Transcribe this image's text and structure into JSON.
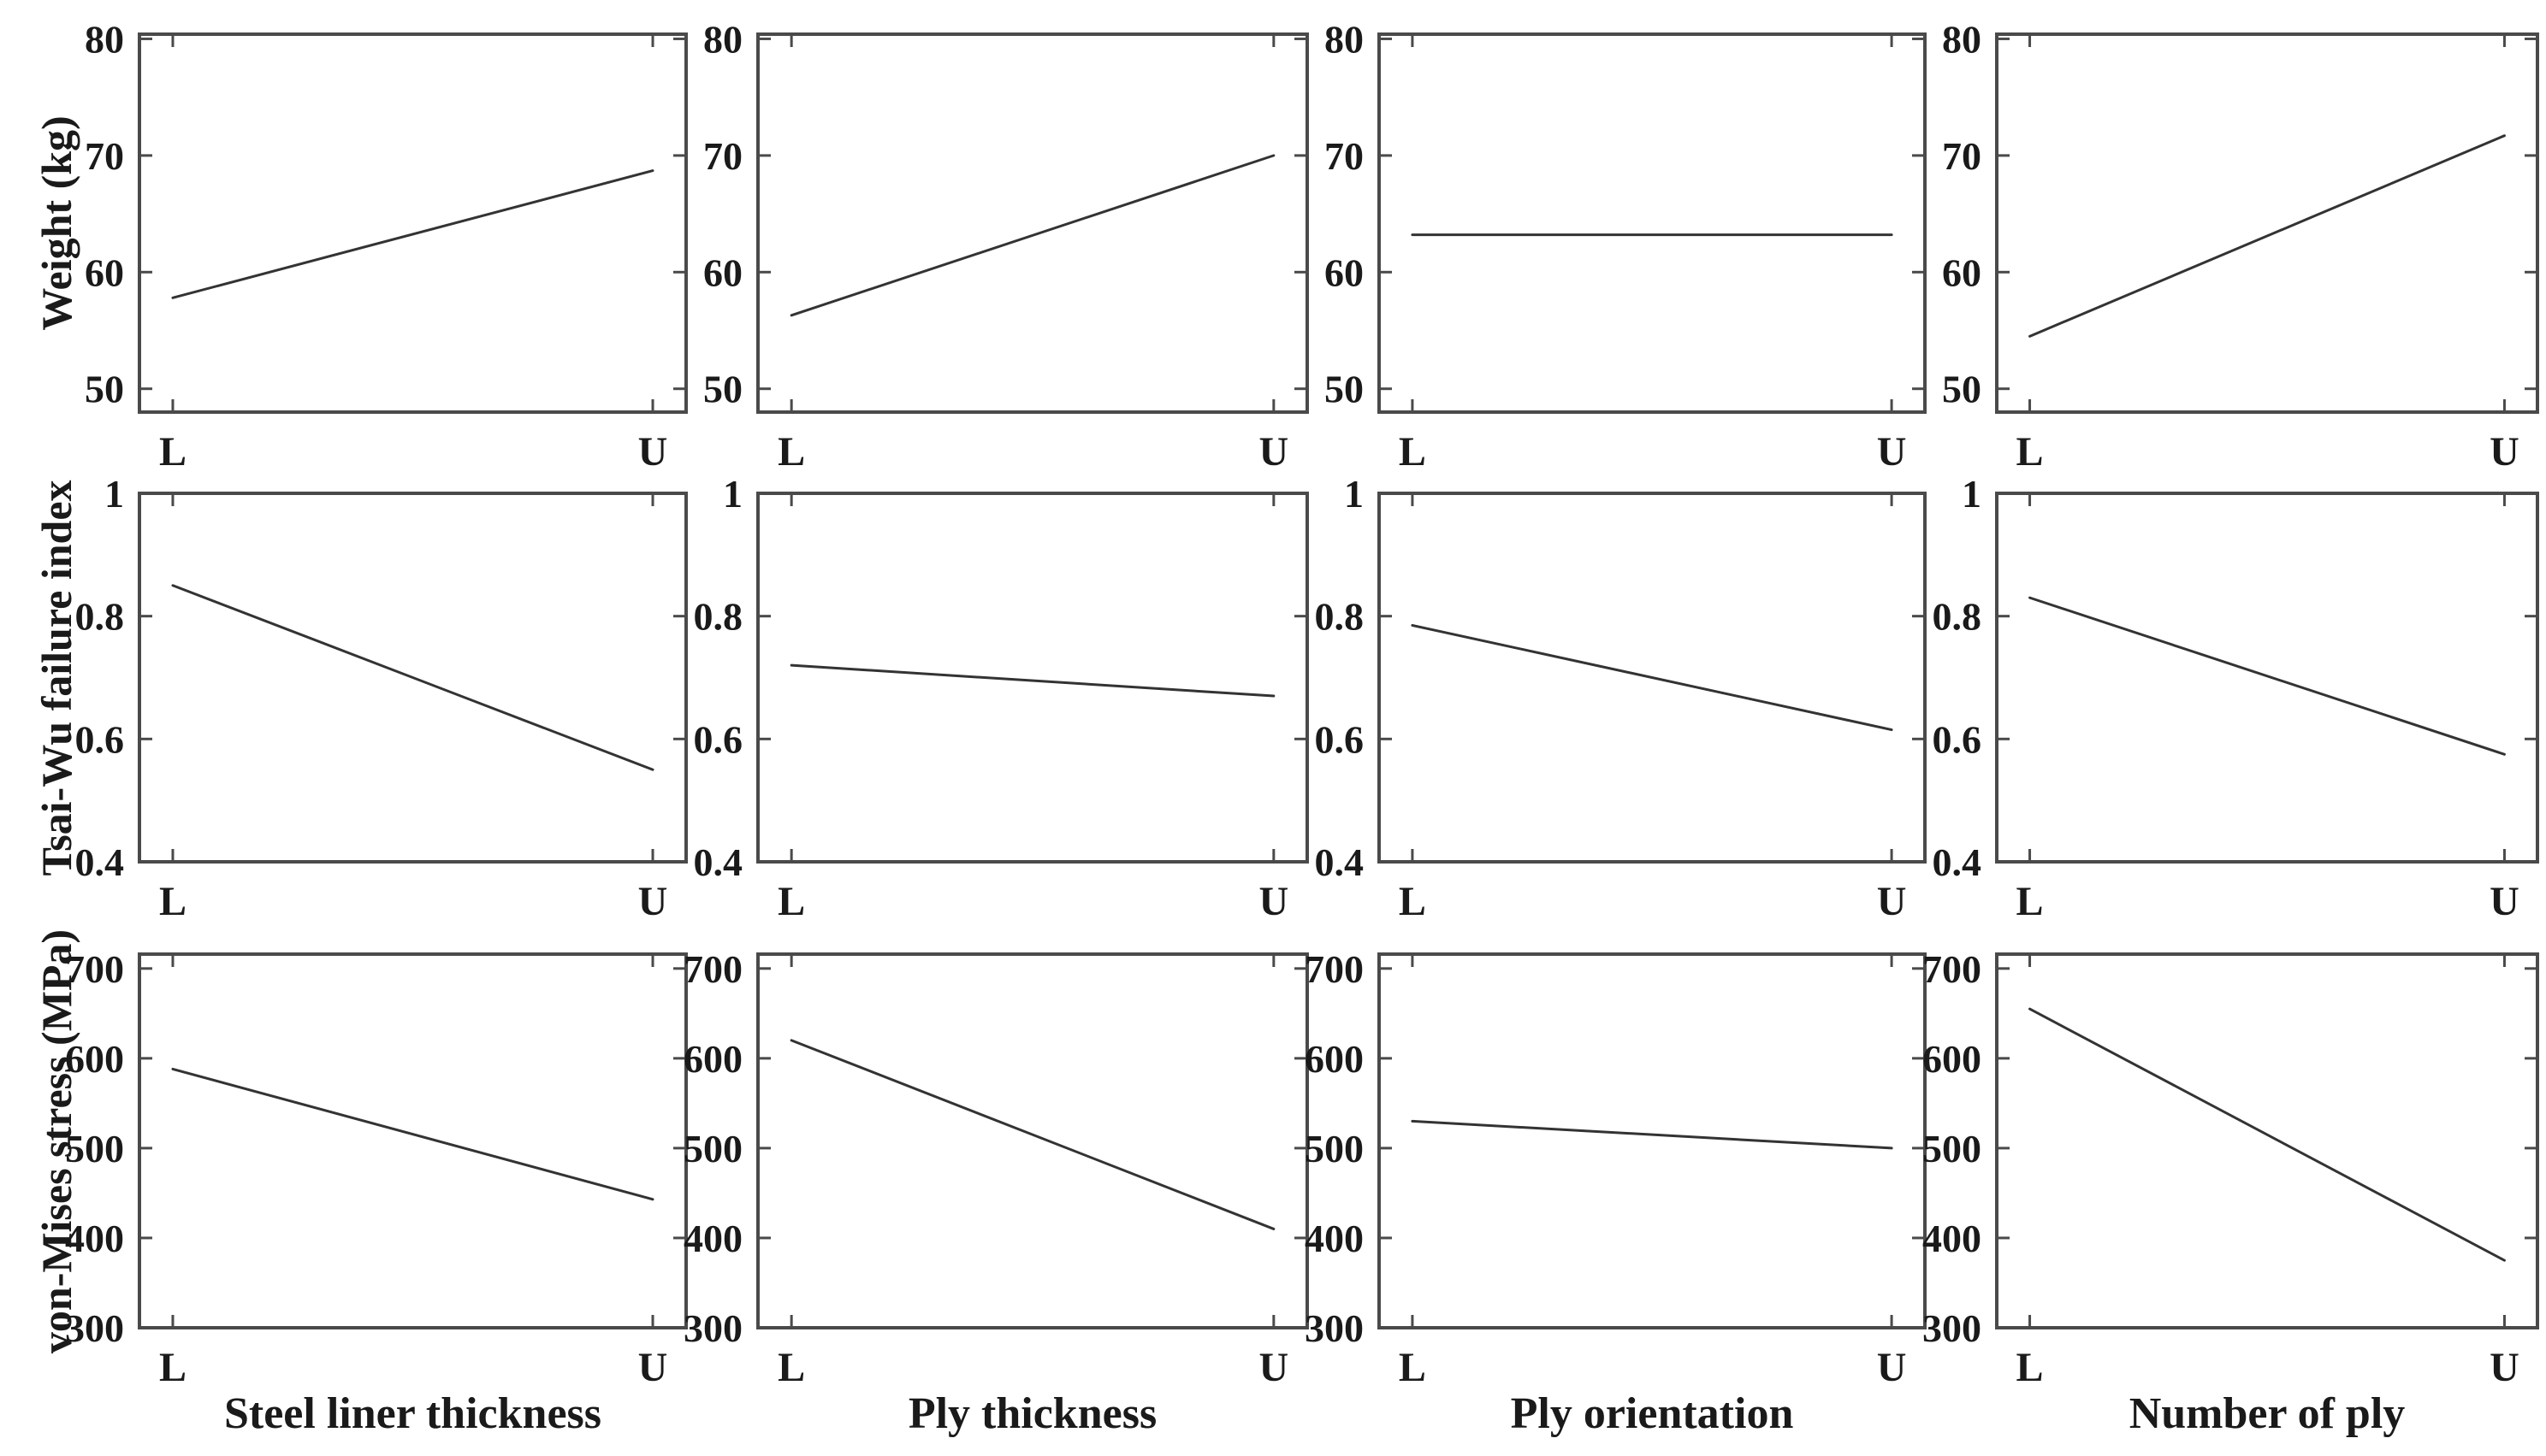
{
  "figure": {
    "background": "#ffffff",
    "text_color": "#1a1a1a",
    "axis_color": "#4a4a4a",
    "line_color": "#333333"
  },
  "chart_data": {
    "type": "line",
    "grid": false,
    "legend": null,
    "x_categories": [
      "L",
      "U"
    ],
    "columns": [
      "Steel liner thickness",
      "Ply thickness",
      "Ply orientation",
      "Number of ply"
    ],
    "rows": [
      {
        "ylabel": "Weight (kg)",
        "ylim": [
          48,
          80.4
        ],
        "yticks": [
          50,
          60,
          70,
          80
        ],
        "series": [
          {
            "name": "Steel liner thickness",
            "values": [
              57.8,
              68.7
            ]
          },
          {
            "name": "Ply thickness",
            "values": [
              56.3,
              70.0
            ]
          },
          {
            "name": "Ply orientation",
            "values": [
              63.2,
              63.2
            ]
          },
          {
            "name": "Number of ply",
            "values": [
              54.5,
              71.7
            ]
          }
        ]
      },
      {
        "ylabel": "Tsai-Wu failure index",
        "ylim": [
          0.4,
          1.0
        ],
        "yticks": [
          0.4,
          0.6,
          0.8,
          1
        ],
        "series": [
          {
            "name": "Steel liner thickness",
            "values": [
              0.85,
              0.55
            ]
          },
          {
            "name": "Ply thickness",
            "values": [
              0.72,
              0.67
            ]
          },
          {
            "name": "Ply orientation",
            "values": [
              0.785,
              0.615
            ]
          },
          {
            "name": "Number of ply",
            "values": [
              0.83,
              0.575
            ]
          }
        ]
      },
      {
        "ylabel": "von-Mises stress (MPa)",
        "ylim": [
          300,
          716
        ],
        "yticks": [
          300,
          400,
          500,
          600,
          700
        ],
        "series": [
          {
            "name": "Steel liner thickness",
            "values": [
              588,
              443
            ]
          },
          {
            "name": "Ply thickness",
            "values": [
              620,
              410
            ]
          },
          {
            "name": "Ply orientation",
            "values": [
              530,
              500
            ]
          },
          {
            "name": "Number of ply",
            "values": [
              655,
              375
            ]
          }
        ]
      }
    ]
  }
}
